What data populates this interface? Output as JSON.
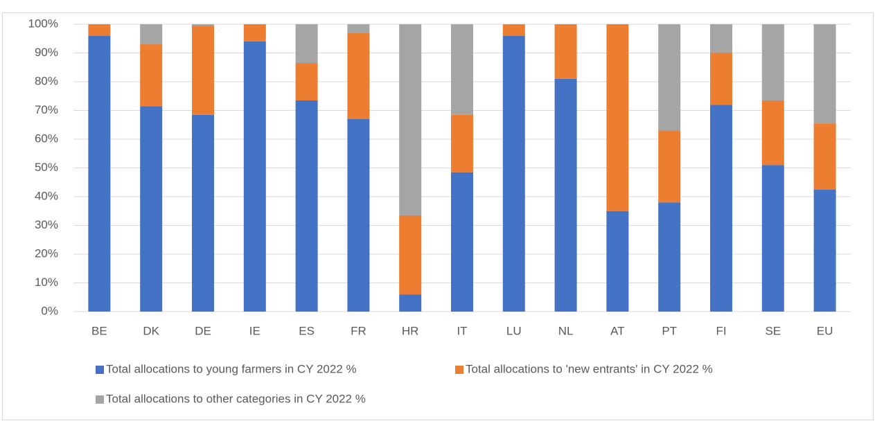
{
  "chart_data": {
    "type": "stacked_bar",
    "categories": [
      "BE",
      "DK",
      "DE",
      "IE",
      "ES",
      "FR",
      "HR",
      "IT",
      "LU",
      "NL",
      "AT",
      "PT",
      "FI",
      "SE",
      "EU"
    ],
    "series": [
      {
        "name": "Total allocations to young farmers in CY 2022 %",
        "color": "#4472c4",
        "values": [
          96,
          71.5,
          68.5,
          94,
          73.5,
          67,
          6,
          48.5,
          96,
          81,
          35,
          38,
          72,
          51,
          42.5
        ]
      },
      {
        "name": "Total allocations to 'new entrants' in CY 2022 %",
        "color": "#ed7d31",
        "values": [
          4,
          21.5,
          31,
          6,
          13,
          30,
          27.5,
          20,
          4,
          19,
          65,
          25,
          18,
          22.5,
          23
        ]
      },
      {
        "name": "Total allocations to other categories in CY 2022 %",
        "color": "#a5a5a5",
        "values": [
          0,
          7,
          0.5,
          0,
          13.5,
          3,
          66.5,
          31.5,
          0,
          0,
          0,
          37,
          10,
          26.5,
          34.5
        ]
      }
    ],
    "ylim": [
      0,
      100
    ],
    "yticks": [
      {
        "value": 0,
        "label": "0%"
      },
      {
        "value": 10,
        "label": "10%"
      },
      {
        "value": 20,
        "label": "20%"
      },
      {
        "value": 30,
        "label": "30%"
      },
      {
        "value": 40,
        "label": "40%"
      },
      {
        "value": 50,
        "label": "50%"
      },
      {
        "value": 60,
        "label": "60%"
      },
      {
        "value": 70,
        "label": "70%"
      },
      {
        "value": 80,
        "label": "80%"
      },
      {
        "value": 90,
        "label": "90%"
      },
      {
        "value": 100,
        "label": "100%"
      }
    ],
    "grid": true,
    "legend": "bottom"
  }
}
